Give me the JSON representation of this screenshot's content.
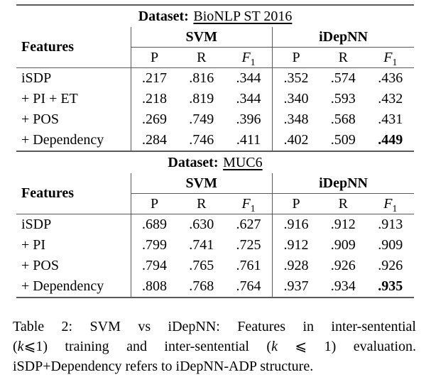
{
  "page": {
    "background": "#ffffff",
    "text_color": "#000000",
    "rule_color": "#5a5a5a"
  },
  "tables": [
    {
      "dataset_label": "Dataset:",
      "dataset_name": "BioNLP ST 2016",
      "features_header": "Features",
      "groups": [
        {
          "name": "SVM"
        },
        {
          "name": "iDepNN"
        }
      ],
      "metrics": [
        {
          "t": "P"
        },
        {
          "t": "R"
        },
        {
          "t": "F",
          "sub": "1"
        },
        {
          "t": "P"
        },
        {
          "t": "R"
        },
        {
          "t": "F",
          "sub": "1"
        }
      ],
      "rows": [
        {
          "feature": "iSDP",
          "values": [
            ".217",
            ".816",
            ".344",
            ".352",
            ".574",
            ".436"
          ]
        },
        {
          "feature": "+ PI + ET",
          "values": [
            ".218",
            ".819",
            ".344",
            ".340",
            ".593",
            ".432"
          ]
        },
        {
          "feature": "+ POS",
          "values": [
            ".269",
            ".749",
            ".396",
            ".348",
            ".568",
            ".431"
          ]
        },
        {
          "feature": "+ Dependency",
          "values": [
            ".284",
            ".746",
            ".411",
            ".402",
            ".509",
            ".449"
          ],
          "bold_value_index": 5
        }
      ]
    },
    {
      "dataset_label": "Dataset:",
      "dataset_name": "MUC6",
      "features_header": "Features",
      "groups": [
        {
          "name": "SVM"
        },
        {
          "name": "iDepNN"
        }
      ],
      "metrics": [
        {
          "t": "P"
        },
        {
          "t": "R"
        },
        {
          "t": "F",
          "sub": "1"
        },
        {
          "t": "P"
        },
        {
          "t": "R"
        },
        {
          "t": "F",
          "sub": "1"
        }
      ],
      "rows": [
        {
          "feature": "iSDP",
          "values": [
            ".689",
            ".630",
            ".627",
            ".916",
            ".912",
            ".913"
          ]
        },
        {
          "feature": "+ PI",
          "values": [
            ".799",
            ".741",
            ".725",
            ".912",
            ".909",
            ".909"
          ]
        },
        {
          "feature": "+ POS",
          "values": [
            ".794",
            ".765",
            ".761",
            ".928",
            ".926",
            ".926"
          ]
        },
        {
          "feature": "+ Dependency",
          "values": [
            ".808",
            ".768",
            ".764",
            ".937",
            ".934",
            ".935"
          ],
          "bold_value_index": 5
        }
      ]
    }
  ],
  "caption": {
    "label": "Table 2:",
    "lines": [
      {
        "parts": [
          {
            "text": "Table 2: SVM vs iDepNN: Features in inter-sentential"
          }
        ]
      },
      {
        "parts": [
          {
            "text": "("
          },
          {
            "text": "k",
            "italic": true
          },
          {
            "text": "⩽1) training and inter-sentential ("
          },
          {
            "text": "k",
            "italic": true
          },
          {
            "text": " ⩽ 1) evaluation."
          }
        ]
      },
      {
        "parts": [
          {
            "text": "iSDP+Dependency refers to iDepNN-ADP structure."
          }
        ]
      }
    ]
  }
}
